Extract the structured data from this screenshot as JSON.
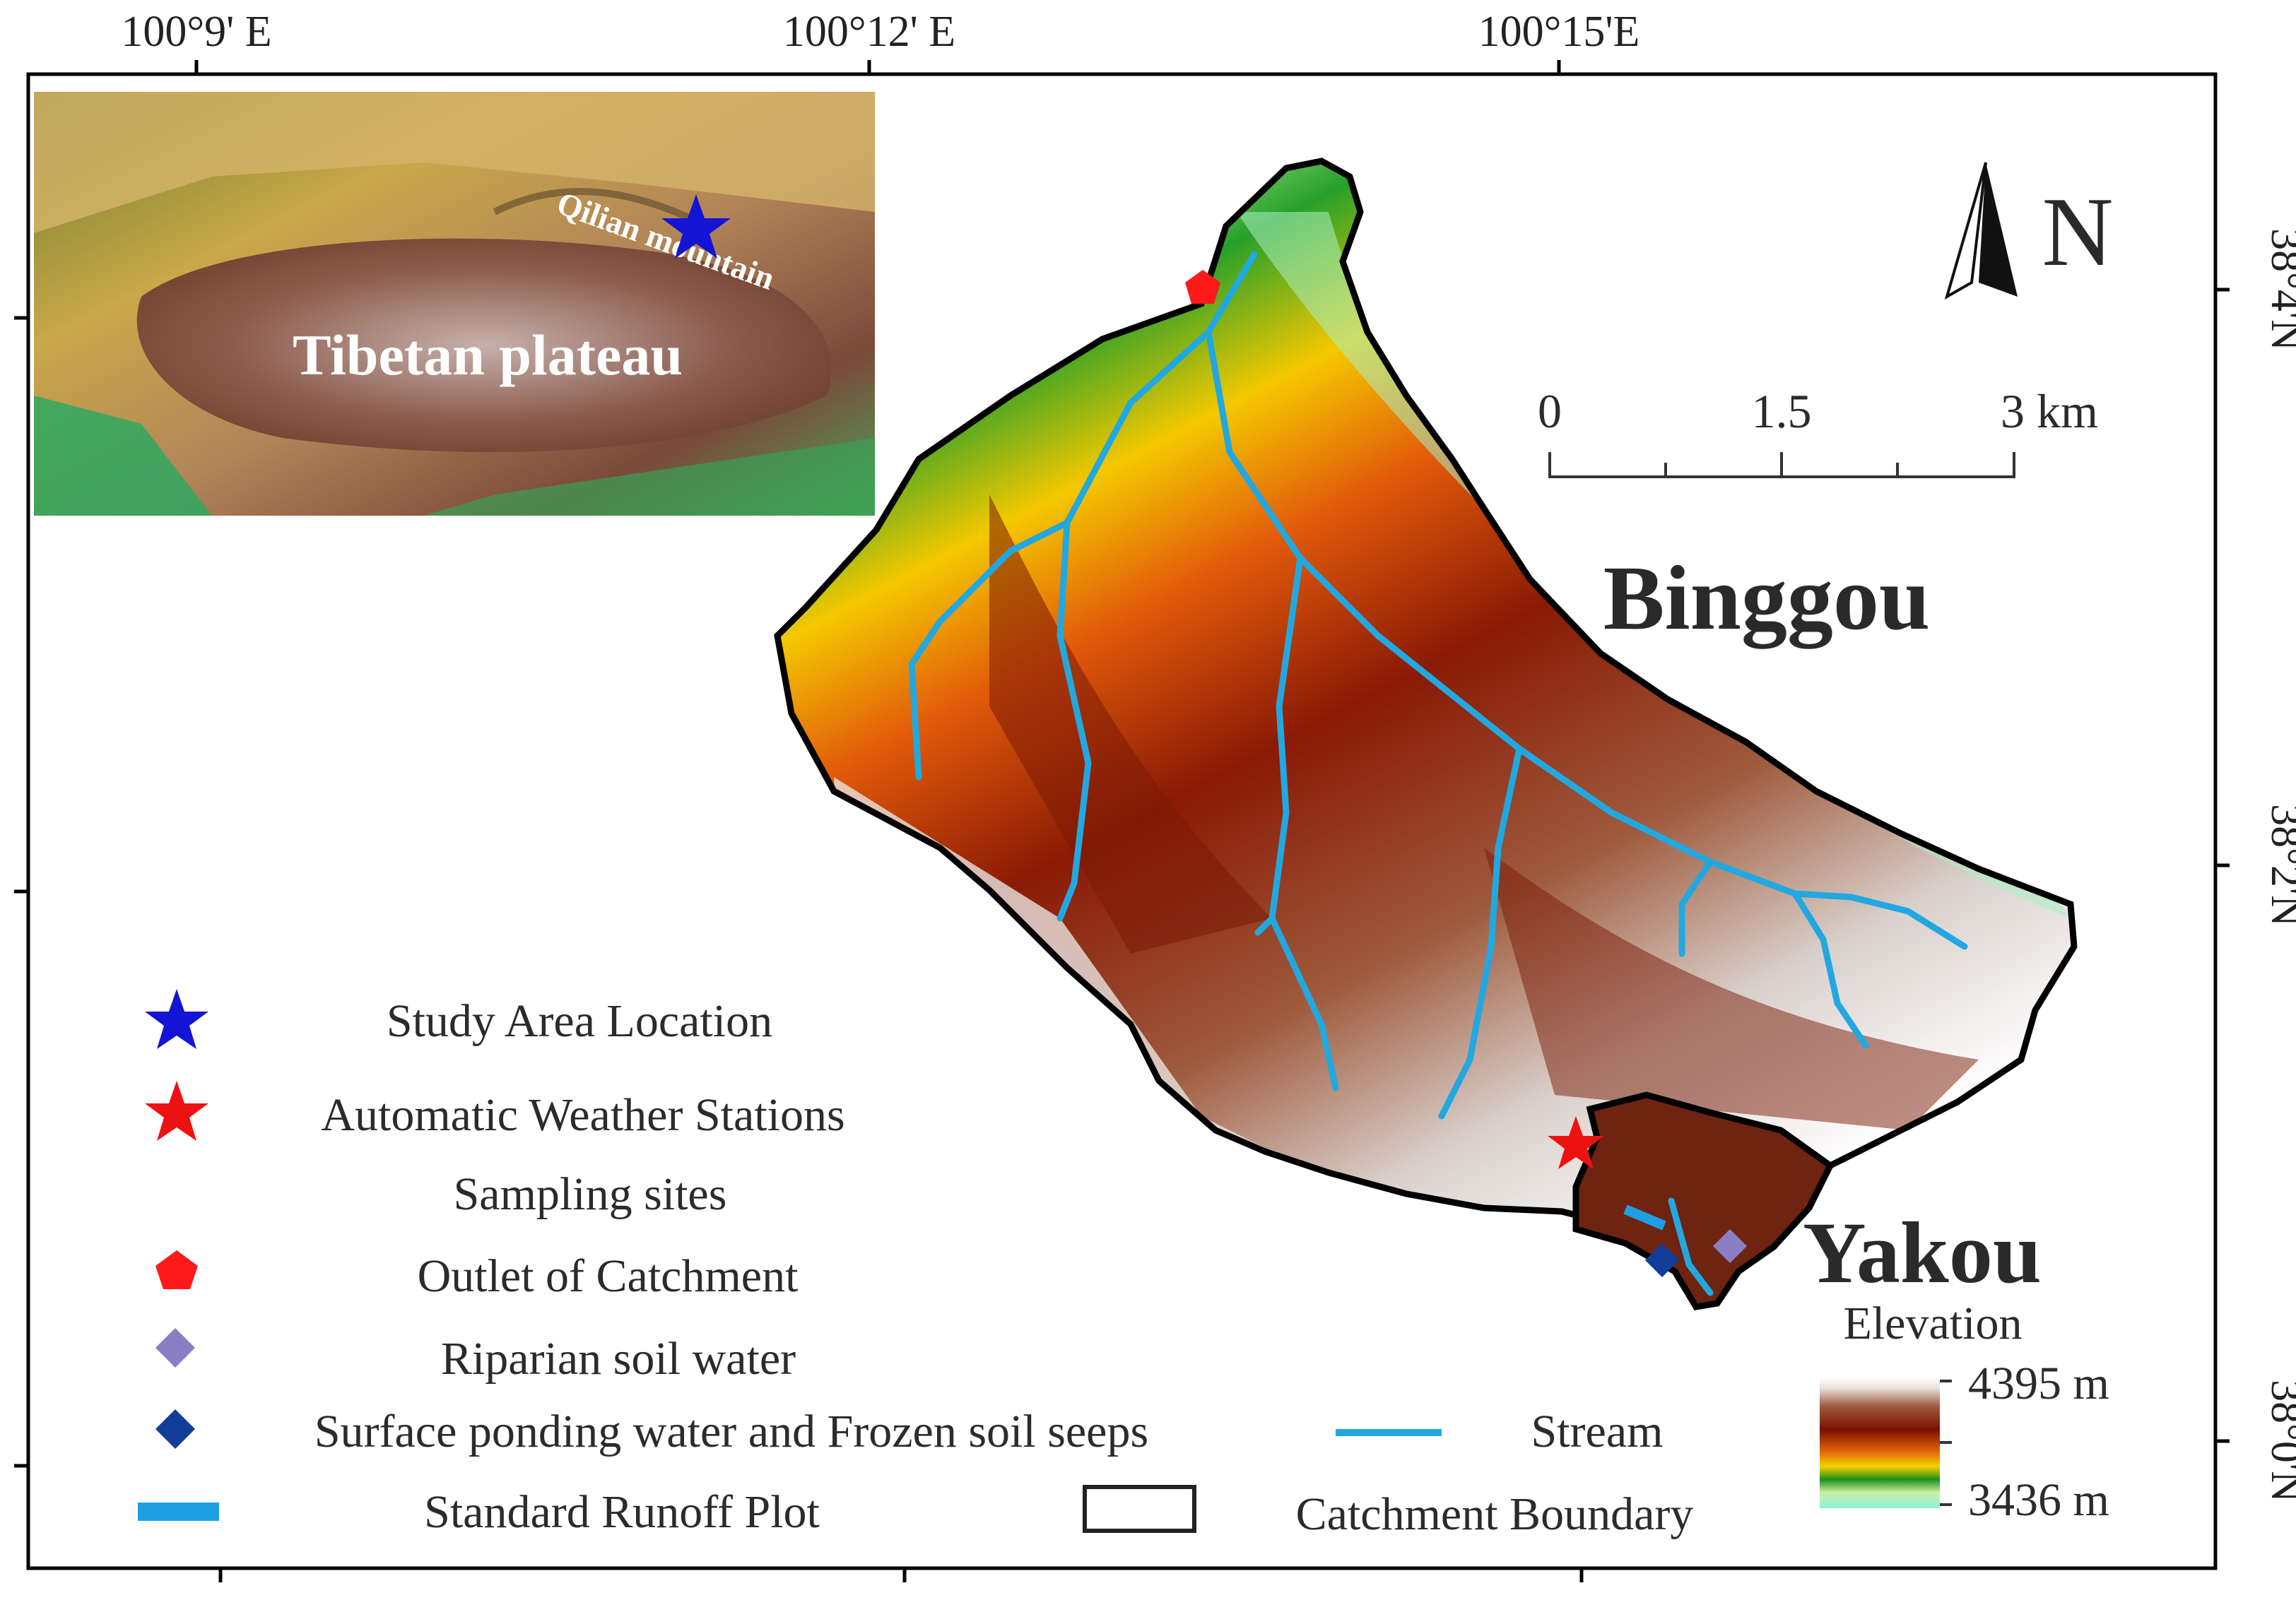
{
  "map": {
    "lon_labels": [
      "100°9' E",
      "100°12' E",
      "100°15'E"
    ],
    "lat_labels": [
      "38°4'N",
      "38°2'N",
      "38°0'N"
    ],
    "places": {
      "binggou": "Binggou",
      "yakou": "Yakou"
    },
    "north_label": "N",
    "scale_bar": {
      "labels": [
        "0",
        "1.5",
        "3 km"
      ]
    },
    "inset": {
      "region_label": "Tibetan plateau",
      "mountain_label": "Qilian mountain"
    },
    "elevation": {
      "title": "Elevation",
      "max": "4395 m",
      "min": "3436 m"
    }
  },
  "legend": {
    "study_area": "Study Area Location",
    "aws": "Automatic Weather Stations",
    "sampling_header": "Sampling sites",
    "outlet": "Outlet of Catchment",
    "riparian": "Riparian soil water",
    "ponding": "Surface ponding water and Frozen soil seeps",
    "runoff_plot": "Standard Runoff Plot",
    "stream": "Stream",
    "boundary": "Catchment Boundary"
  },
  "colors": {
    "star_blue": "#1414d4",
    "star_red": "#ee1111",
    "outlet_red": "#ff1a1a",
    "riparian": "#8a7fc4",
    "ponding": "#123c9a",
    "stream": "#22a8e0",
    "runoff_plot": "#1e9fe3"
  }
}
